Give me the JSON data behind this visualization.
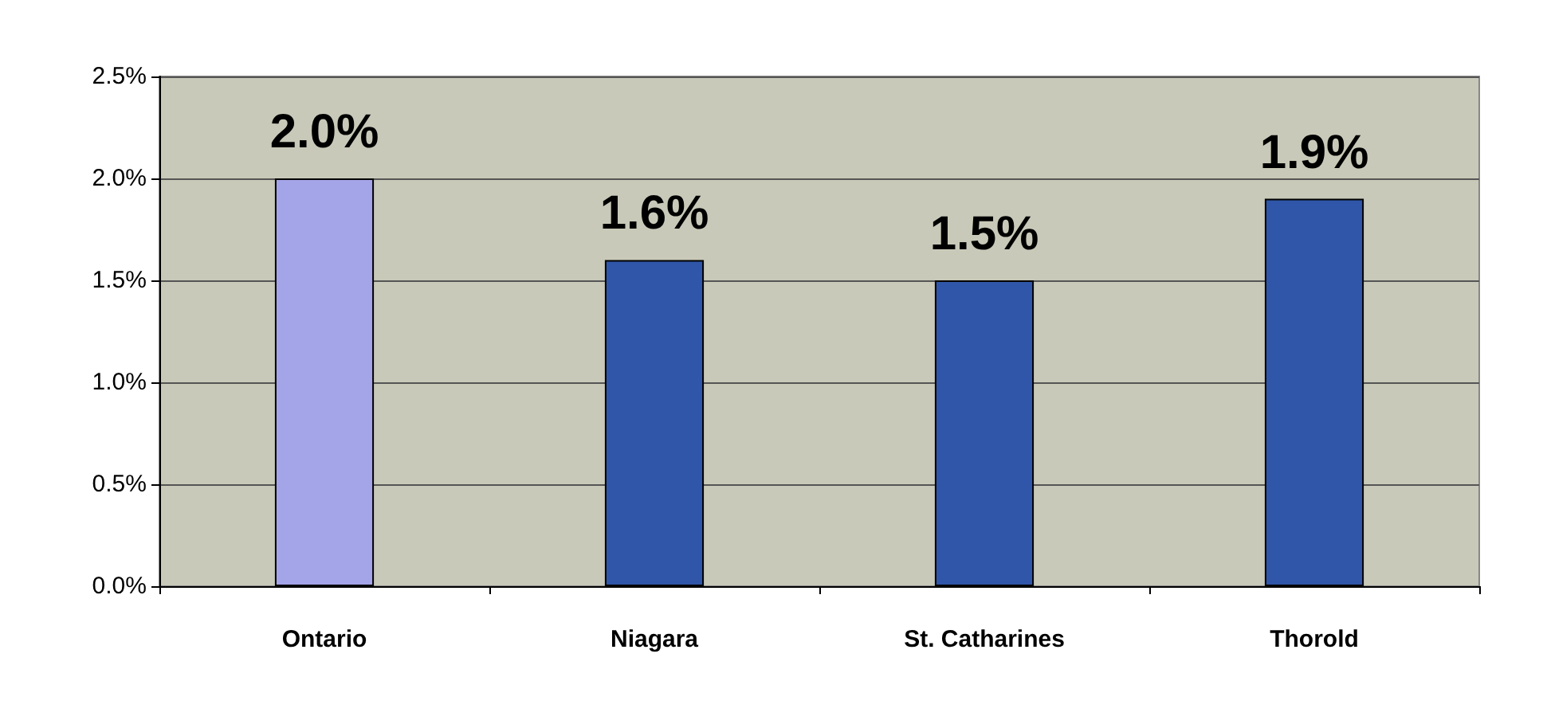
{
  "chart_data": {
    "type": "bar",
    "categories": [
      "Ontario",
      "Niagara",
      "St. Catharines",
      "Thorold"
    ],
    "values": [
      2.0,
      1.6,
      1.5,
      1.9
    ],
    "colors": [
      "#a4a4e8",
      "#2f56a8",
      "#2f56a8",
      "#2f56a8"
    ],
    "value_labels": [
      "2.0%",
      "1.6%",
      "1.5%",
      "1.9%"
    ],
    "ylim": [
      0,
      2.5
    ],
    "yticks": [
      {
        "value": 0,
        "label": "0.0%"
      },
      {
        "value": 0.5,
        "label": "0.5%"
      },
      {
        "value": 1,
        "label": "1.0%"
      },
      {
        "value": 1.5,
        "label": "1.5%"
      },
      {
        "value": 2,
        "label": "2.0%"
      },
      {
        "value": 2.5,
        "label": "2.5%"
      }
    ],
    "grid": "y"
  }
}
